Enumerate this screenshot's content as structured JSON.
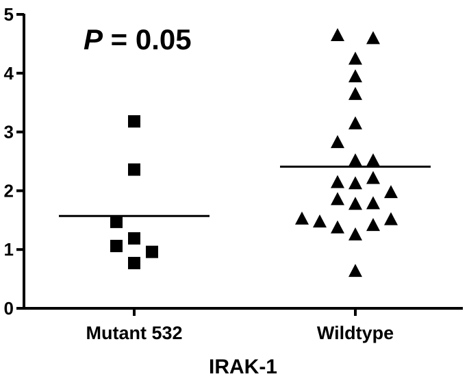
{
  "chart_data": {
    "type": "scatter",
    "title": "",
    "xlabel": "IRAK-1",
    "ylabel": "",
    "ylim": [
      0,
      5
    ],
    "yticks": [
      0,
      1,
      2,
      3,
      4,
      5
    ],
    "grid": false,
    "categories": [
      "Mutant 532",
      "Wildtype"
    ],
    "annotation": {
      "italic": "P",
      "rest": " = 0.05"
    },
    "series": [
      {
        "category": "Mutant 532",
        "marker": "square",
        "points": [
          {
            "jitter": 0,
            "y": 3.18
          },
          {
            "jitter": 0,
            "y": 2.36
          },
          {
            "jitter": -1,
            "y": 1.47
          },
          {
            "jitter": 0,
            "y": 1.19
          },
          {
            "jitter": -1,
            "y": 1.06
          },
          {
            "jitter": 1,
            "y": 0.96
          },
          {
            "jitter": 0,
            "y": 0.77
          }
        ],
        "mean": 1.57
      },
      {
        "category": "Wildtype",
        "marker": "triangle",
        "points": [
          {
            "jitter": -1,
            "y": 4.65
          },
          {
            "jitter": 1,
            "y": 4.6
          },
          {
            "jitter": 0,
            "y": 4.25
          },
          {
            "jitter": 0,
            "y": 3.95
          },
          {
            "jitter": 0,
            "y": 3.65
          },
          {
            "jitter": 0,
            "y": 3.15
          },
          {
            "jitter": -1,
            "y": 2.83
          },
          {
            "jitter": 0,
            "y": 2.52
          },
          {
            "jitter": 1,
            "y": 2.52
          },
          {
            "jitter": -1,
            "y": 2.15
          },
          {
            "jitter": 0,
            "y": 2.13
          },
          {
            "jitter": 1,
            "y": 2.22
          },
          {
            "jitter": 2,
            "y": 1.98
          },
          {
            "jitter": -1,
            "y": 1.86
          },
          {
            "jitter": 0,
            "y": 1.78
          },
          {
            "jitter": 1,
            "y": 1.79
          },
          {
            "jitter": -3,
            "y": 1.53
          },
          {
            "jitter": -2,
            "y": 1.48
          },
          {
            "jitter": -1,
            "y": 1.38
          },
          {
            "jitter": 0,
            "y": 1.26
          },
          {
            "jitter": 1,
            "y": 1.42
          },
          {
            "jitter": 2,
            "y": 1.52
          },
          {
            "jitter": 0,
            "y": 0.64
          }
        ],
        "mean": 2.41
      }
    ],
    "colors": {
      "marker": "#000000",
      "axis": "#000000"
    }
  }
}
